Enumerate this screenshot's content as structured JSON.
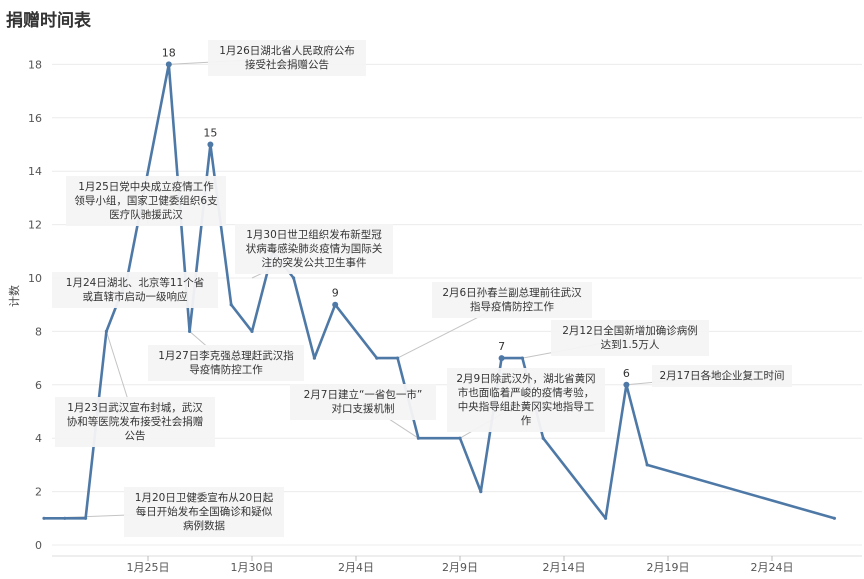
{
  "chart_data": {
    "type": "line",
    "title": "捐赠时间表",
    "ylabel": "计数",
    "xlabel": "",
    "ylim": [
      0,
      19
    ],
    "yticks": [
      0,
      2,
      4,
      6,
      8,
      10,
      12,
      14,
      16,
      18
    ],
    "xticks": [
      "1月25日",
      "1月30日",
      "2月4日",
      "2月9日",
      "2月14日",
      "2月19日",
      "2月24日"
    ],
    "grid": "horizontal",
    "color": "#4e79a7",
    "points": [
      {
        "x": "1月20日",
        "y": 1
      },
      {
        "x": "1月21日",
        "y": 1
      },
      {
        "x": "1月22日",
        "y": 1
      },
      {
        "x": "1月23日",
        "y": 8
      },
      {
        "x": "1月24日",
        "y": 10
      },
      {
        "x": "1月26日",
        "y": 18
      },
      {
        "x": "1月27日",
        "y": 8
      },
      {
        "x": "1月28日",
        "y": 15
      },
      {
        "x": "1月29日",
        "y": 9
      },
      {
        "x": "1月30日",
        "y": 8
      },
      {
        "x": "1月31日",
        "y": 11
      },
      {
        "x": "2月1日",
        "y": 10
      },
      {
        "x": "2月2日",
        "y": 7
      },
      {
        "x": "2月3日",
        "y": 9
      },
      {
        "x": "2月5日",
        "y": 7
      },
      {
        "x": "2月6日",
        "y": 7
      },
      {
        "x": "2月7日",
        "y": 4
      },
      {
        "x": "2月9日",
        "y": 4
      },
      {
        "x": "2月10日",
        "y": 2
      },
      {
        "x": "2月11日",
        "y": 7
      },
      {
        "x": "2月12日",
        "y": 7
      },
      {
        "x": "2月13日",
        "y": 4
      },
      {
        "x": "2月16日",
        "y": 1
      },
      {
        "x": "2月17日",
        "y": 6
      },
      {
        "x": "2月18日",
        "y": 3
      },
      {
        "x": "2月27日",
        "y": 1
      }
    ],
    "data_labels": [
      {
        "x": "1月26日",
        "y": 18,
        "text": "18"
      },
      {
        "x": "1月28日",
        "y": 15,
        "text": "15"
      },
      {
        "x": "2月3日",
        "y": 9,
        "text": "9"
      },
      {
        "x": "2月11日",
        "y": 7,
        "text": "7"
      },
      {
        "x": "2月17日",
        "y": 6,
        "text": "6"
      }
    ],
    "annotations": [
      {
        "x": "1月20日",
        "y": 1,
        "lines": [
          "1月20日卫健委宣布从20日起",
          "每日开始发布全国确诊和疑似",
          "病例数据"
        ]
      },
      {
        "x": "1月23日",
        "y": 8,
        "lines": [
          "1月23日武汉宣布封城，武汉",
          "协和等医院发布接受社会捐赠",
          "公告"
        ]
      },
      {
        "x": "1月24日",
        "y": 10,
        "lines": [
          "1月24日湖北、北京等11个省",
          "或直辖市启动一级响应"
        ]
      },
      {
        "x": "1月25日",
        "y": 12,
        "lines": [
          "1月25日党中央成立疫情工作",
          "领导小组，国家卫健委组织6支",
          "医疗队驰援武汉"
        ]
      },
      {
        "x": "1月26日",
        "y": 18,
        "lines": [
          "1月26日湖北省人民政府公布",
          "接受社会捐赠公告"
        ]
      },
      {
        "x": "1月27日",
        "y": 8,
        "lines": [
          "1月27日李克强总理赶武汉指",
          "导疫情防控工作"
        ]
      },
      {
        "x": "1月30日",
        "y": 10,
        "lines": [
          "1月30日世卫组织发布新型冠",
          "状病毒感染肺炎疫情为国际关",
          "注的突发公共卫生事件"
        ]
      },
      {
        "x": "2月6日",
        "y": 7,
        "lines": [
          "2月6日孙春兰副总理前往武汉",
          "指导疫情防控工作"
        ]
      },
      {
        "x": "2月7日",
        "y": 4,
        "lines": [
          "2月7日建立“一省包一市”",
          "对口支援机制"
        ]
      },
      {
        "x": "2月9日",
        "y": 4,
        "lines": [
          "2月9日除武汉外，湖北省黄冈",
          "市也面临着严峻的疫情考验，",
          "中央指导组赴黄冈实地指导工",
          "作"
        ]
      },
      {
        "x": "2月12日",
        "y": 7,
        "lines": [
          "2月12日全国新增加确诊病例",
          "达到1.5万人"
        ]
      },
      {
        "x": "2月17日",
        "y": 6,
        "lines": [
          "2月17日各地企业复工时间"
        ]
      }
    ]
  }
}
